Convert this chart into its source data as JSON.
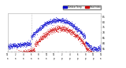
{
  "title": "",
  "legend_labels": [
    "Outdoor Temp",
    "Heat Index"
  ],
  "legend_colors": [
    "#0000ff",
    "#ff0000"
  ],
  "background_color": "#ffffff",
  "plot_bg": "#ffffff",
  "blue_color": "#0000cc",
  "red_color": "#cc0000",
  "y_ticks": [
    55,
    60,
    65,
    70,
    75,
    80,
    85
  ],
  "ylim": [
    52,
    88
  ],
  "xlim": [
    0,
    1440
  ],
  "vline_x": 370,
  "num_points": 1440,
  "seed": 7,
  "noise_temp": 1.2,
  "noise_heat": 1.4,
  "temp_peak": 82,
  "temp_low": 60,
  "heat_peak": 74,
  "heat_low": 52
}
